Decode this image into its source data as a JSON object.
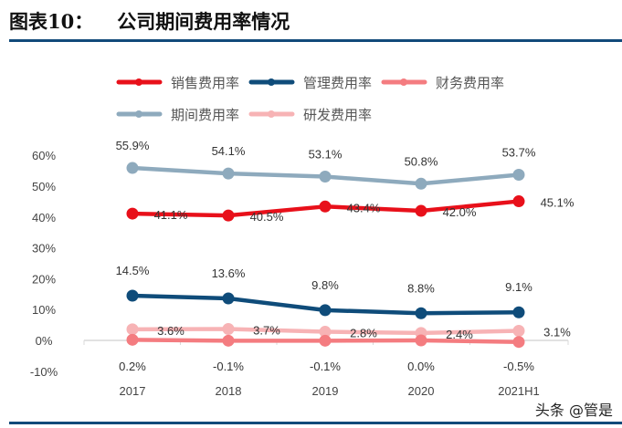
{
  "header": {
    "figure_label": "图表10：",
    "title": "公司期间费用率情况"
  },
  "watermark": "头条 @管是",
  "chart_data": {
    "type": "line",
    "categories": [
      "2017",
      "2018",
      "2019",
      "2020",
      "2021H1"
    ],
    "ylim": [
      -10,
      60
    ],
    "yticks": [
      "-10%",
      "0%",
      "10%",
      "20%",
      "30%",
      "40%",
      "50%",
      "60%"
    ],
    "ytick_values": [
      -10,
      0,
      10,
      20,
      30,
      40,
      50,
      60
    ],
    "grid": false,
    "legend": "top",
    "series": [
      {
        "name": "销售费用率",
        "values": [
          41.1,
          40.5,
          43.4,
          42.0,
          45.1
        ],
        "labels": [
          "41.1%",
          "40.5%",
          "43.4%",
          "42.0%",
          "45.1%"
        ],
        "color": "#e8101a",
        "label_pos": "right"
      },
      {
        "name": "管理费用率",
        "values": [
          14.5,
          13.6,
          9.8,
          8.8,
          9.1
        ],
        "labels": [
          "14.5%",
          "13.6%",
          "9.8%",
          "8.8%",
          "9.1%"
        ],
        "color": "#0f4c7a",
        "label_pos": "above"
      },
      {
        "name": "财务费用率",
        "values": [
          0.2,
          -0.1,
          -0.1,
          0.0,
          -0.5
        ],
        "labels": [
          "0.2%",
          "-0.1%",
          "-0.1%",
          "0.0%",
          "-0.5%"
        ],
        "color": "#f47c80",
        "label_pos": "below"
      },
      {
        "name": "期间费用率",
        "values": [
          55.9,
          54.1,
          53.1,
          50.8,
          53.7
        ],
        "labels": [
          "55.9%",
          "54.1%",
          "53.1%",
          "50.8%",
          "53.7%"
        ],
        "color": "#8eaabd",
        "label_pos": "above"
      },
      {
        "name": "研发费用率",
        "values": [
          3.6,
          3.7,
          2.8,
          2.4,
          3.1
        ],
        "labels": [
          "3.6%",
          "3.7%",
          "2.8%",
          "2.4%",
          "3.1%"
        ],
        "color": "#f7b3b5",
        "label_pos": "right"
      }
    ]
  }
}
